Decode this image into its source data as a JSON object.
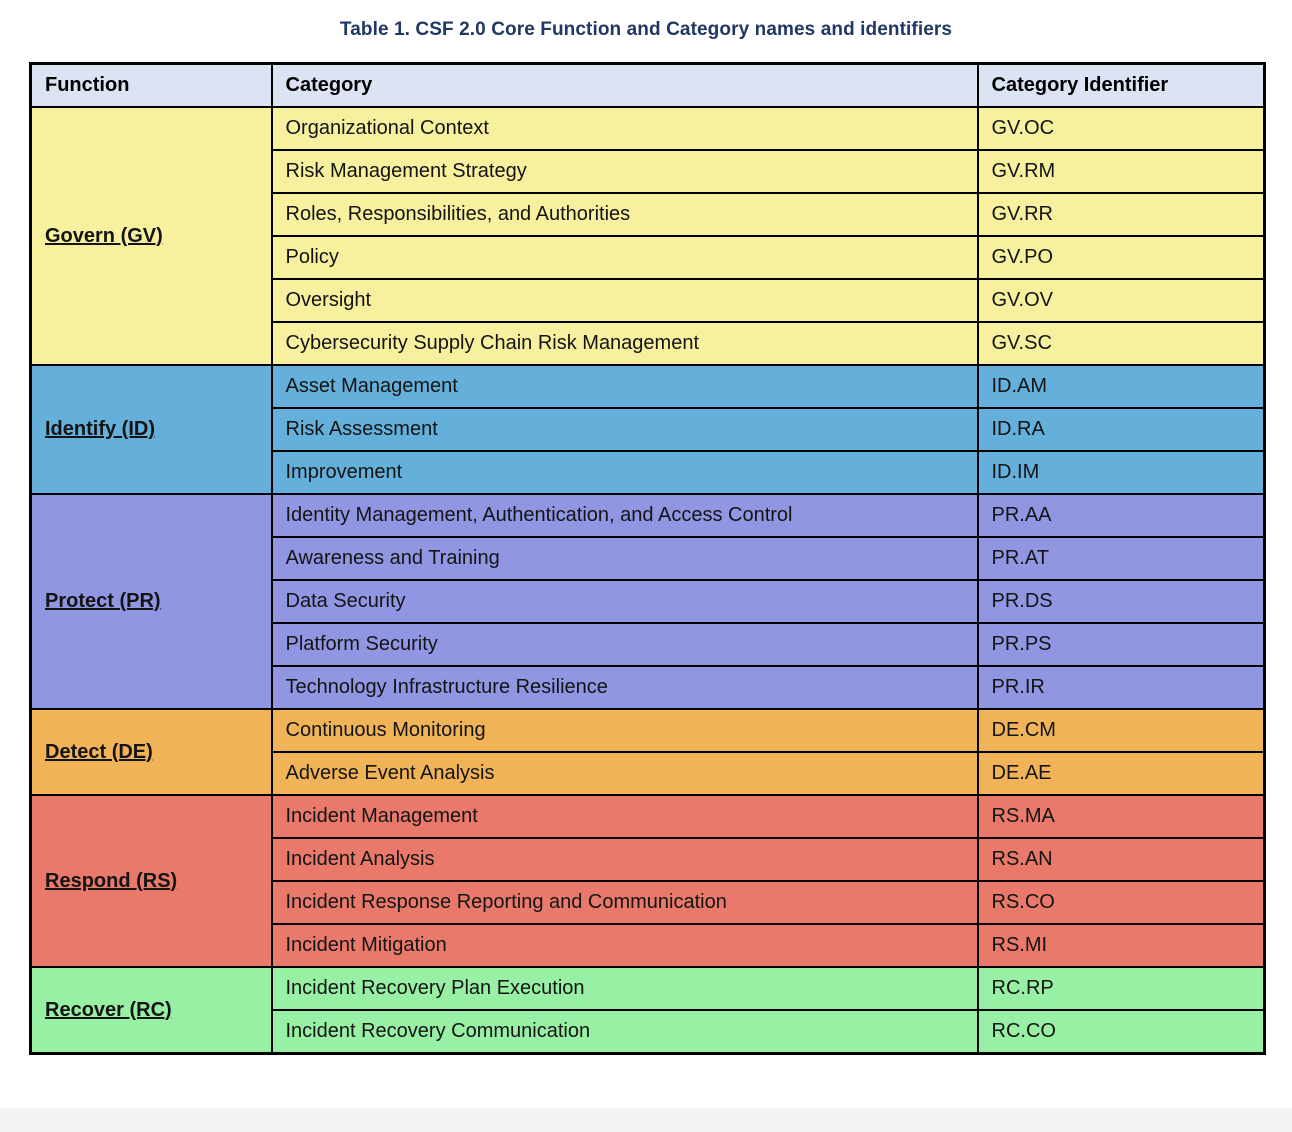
{
  "title": "Table 1. CSF 2.0 Core Function and Category names and identifiers",
  "colors": {
    "title_text": "#1F3864",
    "header_bg": "#DCE3F2",
    "border": "#000000",
    "govern": "#F6F09F",
    "identify": "#65AFDB",
    "protect": "#9096E2",
    "detect": "#F1B357",
    "respond": "#E97A6B",
    "recover": "#97F0A4"
  },
  "table": {
    "headers": [
      "Function",
      "Category",
      "Category Identifier"
    ],
    "groups": [
      {
        "function": "Govern (GV)",
        "color": "#F6F09F",
        "rows": [
          [
            "Organizational Context",
            "GV.OC"
          ],
          [
            "Risk Management Strategy",
            "GV.RM"
          ],
          [
            "Roles, Responsibilities, and Authorities",
            "GV.RR"
          ],
          [
            "Policy",
            "GV.PO"
          ],
          [
            "Oversight",
            "GV.OV"
          ],
          [
            "Cybersecurity Supply Chain Risk Management",
            "GV.SC"
          ]
        ]
      },
      {
        "function": "Identify (ID)",
        "color": "#65AFDB",
        "rows": [
          [
            "Asset Management",
            "ID.AM"
          ],
          [
            "Risk Assessment",
            "ID.RA"
          ],
          [
            "Improvement",
            "ID.IM"
          ]
        ]
      },
      {
        "function": "Protect (PR)",
        "color": "#9096E2",
        "rows": [
          [
            "Identity Management, Authentication, and Access Control",
            "PR.AA"
          ],
          [
            "Awareness and Training",
            "PR.AT"
          ],
          [
            "Data Security",
            "PR.DS"
          ],
          [
            "Platform Security",
            "PR.PS"
          ],
          [
            "Technology Infrastructure Resilience",
            "PR.IR"
          ]
        ]
      },
      {
        "function": "Detect (DE)",
        "color": "#F1B357",
        "rows": [
          [
            "Continuous Monitoring",
            "DE.CM"
          ],
          [
            "Adverse Event Analysis",
            "DE.AE"
          ]
        ]
      },
      {
        "function": "Respond (RS)",
        "color": "#E97A6B",
        "rows": [
          [
            "Incident Management",
            "RS.MA"
          ],
          [
            "Incident Analysis",
            "RS.AN"
          ],
          [
            "Incident Response Reporting and Communication",
            "RS.CO"
          ],
          [
            "Incident Mitigation",
            "RS.MI"
          ]
        ]
      },
      {
        "function": "Recover (RC)",
        "color": "#97F0A4",
        "rows": [
          [
            "Incident Recovery Plan Execution",
            "RC.RP"
          ],
          [
            "Incident Recovery Communication",
            "RC.CO"
          ]
        ]
      }
    ]
  }
}
